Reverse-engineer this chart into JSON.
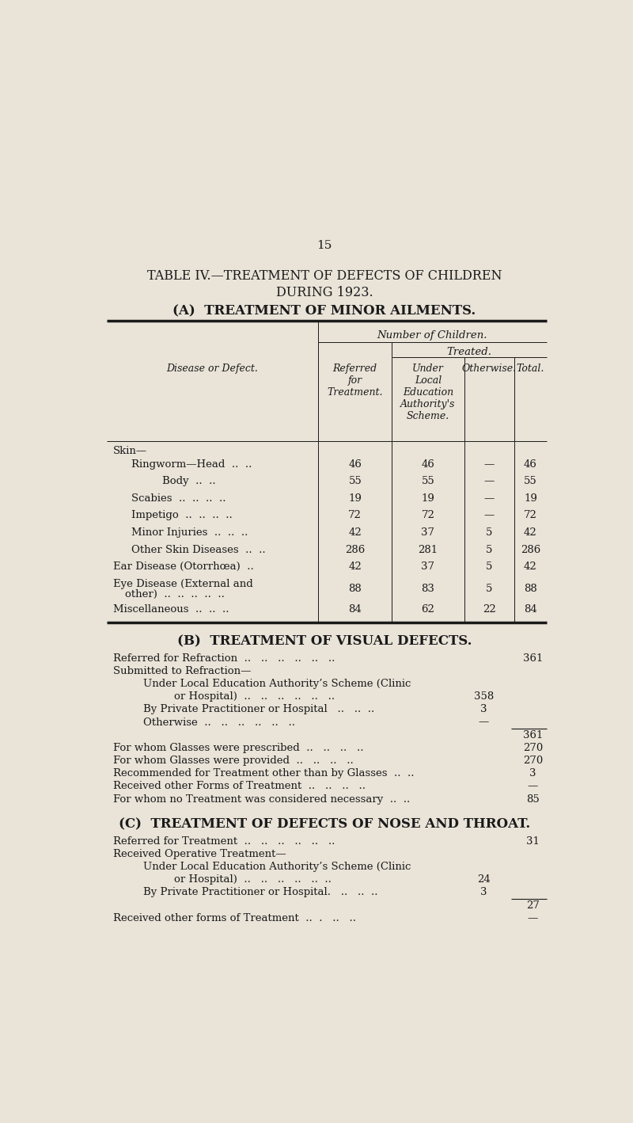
{
  "page_number": "15",
  "title_line1": "TABLE IV.—TREATMENT OF DEFECTS OF CHILDREN",
  "title_line2": "DURING 1923.",
  "section_a_title": "(A)  TREATMENT OF MINOR AILMENTS.",
  "bg_color": "#e9e3d8",
  "text_color": "#1a1a1a",
  "table_a_rows": [
    {
      "label0": "Skin—",
      "label1": null,
      "ref": null,
      "under_lea": null,
      "otherwise": null,
      "total": null
    },
    {
      "label0": "Ringworm—Head  ..  ..",
      "label1": null,
      "ref": "46",
      "under_lea": "46",
      "otherwise": "—",
      "total": "46"
    },
    {
      "label0": "Body  ..  ..",
      "label1": null,
      "ref": "55",
      "under_lea": "55",
      "otherwise": "—",
      "total": "55"
    },
    {
      "label0": "Scabies  ..  ..  ..  ..",
      "label1": null,
      "ref": "19",
      "under_lea": "19",
      "otherwise": "—",
      "total": "19"
    },
    {
      "label0": "Impetigo  ..  ..  ..  ..",
      "label1": null,
      "ref": "72",
      "under_lea": "72",
      "otherwise": "—",
      "total": "72"
    },
    {
      "label0": "Minor Injuries  ..  ..  ..",
      "label1": null,
      "ref": "42",
      "under_lea": "37",
      "otherwise": "5",
      "total": "42"
    },
    {
      "label0": "Other Skin Diseases  ..  ..",
      "label1": null,
      "ref": "286",
      "under_lea": "281",
      "otherwise": "5",
      "total": "286"
    },
    {
      "label0": "Ear Disease (Otorrhœa)  ..",
      "label1": null,
      "ref": "42",
      "under_lea": "37",
      "otherwise": "5",
      "total": "42"
    },
    {
      "label0": "Eye Disease (External and",
      "label1": "other)  ..  ..  ..  ..  ..",
      "ref": "88",
      "under_lea": "83",
      "otherwise": "5",
      "total": "88"
    },
    {
      "label0": "Miscellaneous  ..  ..  ..",
      "label1": null,
      "ref": "84",
      "under_lea": "62",
      "otherwise": "22",
      "total": "84"
    }
  ],
  "row_types": [
    "header",
    "normal",
    "normal",
    "normal",
    "normal",
    "normal",
    "normal",
    "smallcaps",
    "smallcaps2",
    "smallcaps"
  ],
  "row_indents": [
    0,
    1,
    2,
    1,
    1,
    1,
    1,
    0,
    0,
    0
  ],
  "section_b_title": "(B)  TREATMENT OF VISUAL DEFECTS.",
  "section_b_lines": [
    {
      "text": "Referred for Refraction  ..   ..   ..   ..   ..   ..",
      "indent": 0,
      "value": "361",
      "value_col": "far"
    },
    {
      "text": "Submitted to Refraction—",
      "indent": 0,
      "value": null,
      "value_col": null
    },
    {
      "text": "Under Local Education Authority’s Scheme (Clinic",
      "indent": 1,
      "value": null,
      "value_col": null
    },
    {
      "text": "or Hospital)  ..   ..   ..   ..   ..   ..",
      "indent": 2,
      "value": "358",
      "value_col": "mid"
    },
    {
      "text": "By Private Practitioner or Hospital   ..   ..  ..",
      "indent": 1,
      "value": "3",
      "value_col": "mid"
    },
    {
      "text": "Otherwise  ..   ..   ..   ..   ..   ..",
      "indent": 1,
      "value": "—",
      "value_col": "mid"
    },
    {
      "text": "",
      "indent": 0,
      "value": "361",
      "value_col": "far_line"
    },
    {
      "text": "For whom Glasses were prescribed  ..   ..   ..   ..",
      "indent": 0,
      "value": "270",
      "value_col": "far"
    },
    {
      "text": "For whom Glasses were provided  ..   ..   ..   ..",
      "indent": 0,
      "value": "270",
      "value_col": "far"
    },
    {
      "text": "Recommended for Treatment other than by Glasses  ..  ..",
      "indent": 0,
      "value": "3",
      "value_col": "far"
    },
    {
      "text": "Received other Forms of Treatment  ..   ..   ..   ..",
      "indent": 0,
      "value": "—",
      "value_col": "far"
    },
    {
      "text": "For whom no Treatment was considered necessary  ..  ..",
      "indent": 0,
      "value": "85",
      "value_col": "far"
    }
  ],
  "section_c_title": "(C)  TREATMENT OF DEFECTS OF NOSE AND THROAT.",
  "section_c_lines": [
    {
      "text": "Referred for Treatment  ..   ..   ..   ..   ..   ..",
      "indent": 0,
      "value": "31",
      "value_col": "far"
    },
    {
      "text": "Received Operative Treatment—",
      "indent": 0,
      "value": null,
      "value_col": null
    },
    {
      "text": "Under Local Education Authority’s Scheme (Clinic",
      "indent": 1,
      "value": null,
      "value_col": null
    },
    {
      "text": "or Hospital)  ..   ..   ..   ..   ..  ..",
      "indent": 2,
      "value": "24",
      "value_col": "mid"
    },
    {
      "text": "By Private Practitioner or Hospital.   ..   ..  ..",
      "indent": 1,
      "value": "3",
      "value_col": "mid"
    },
    {
      "text": "",
      "indent": 0,
      "value": "27",
      "value_col": "far_line"
    },
    {
      "text": "Received other forms of Treatment  ..  .   ..   ..",
      "indent": 0,
      "value": "—",
      "value_col": "far"
    }
  ]
}
